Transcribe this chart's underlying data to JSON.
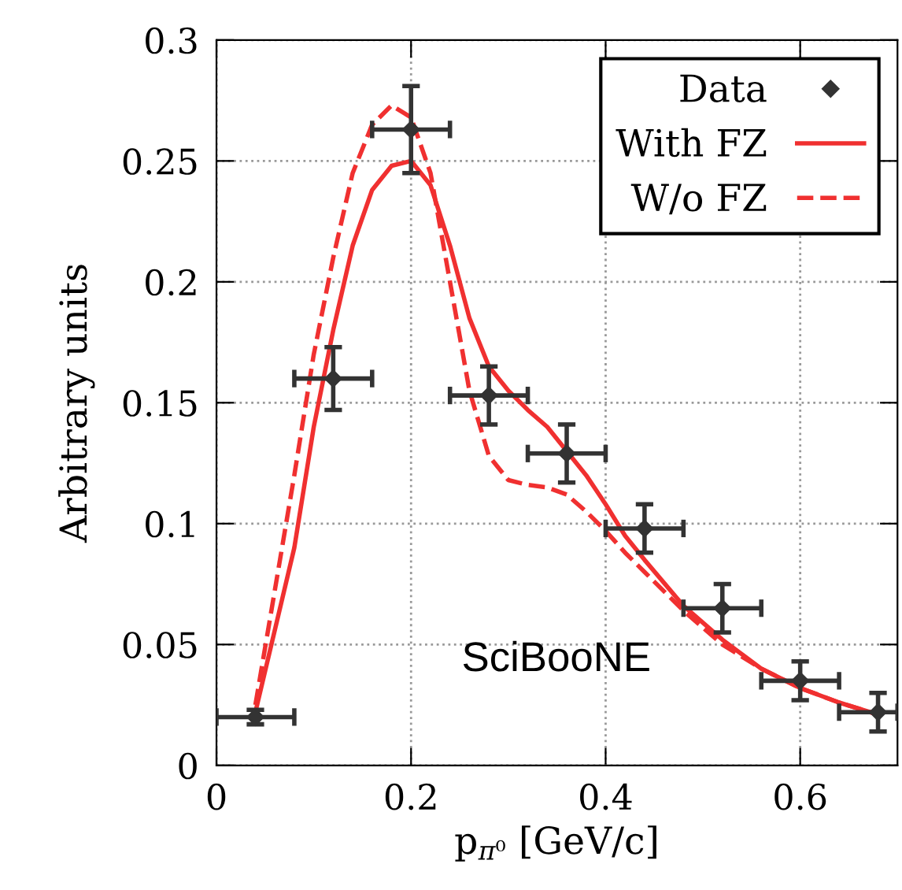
{
  "chart_data": {
    "type": "scatter",
    "xlabel": "p$_{π⁰}$ [GeV/c]",
    "ylabel": "Arbitrary units",
    "xlim": [
      0,
      0.7
    ],
    "ylim": [
      0,
      0.3
    ],
    "xticks": [
      0,
      0.2,
      0.4,
      0.6
    ],
    "yticks": [
      0,
      0.05,
      0.1,
      0.15,
      0.2,
      0.25,
      0.3
    ],
    "grid": true,
    "legend": "top right",
    "annotations": [
      "SciBooNE"
    ],
    "series": [
      {
        "name": "Data",
        "marker": "diamond",
        "color": "#333333",
        "x": [
          0.04,
          0.12,
          0.2,
          0.28,
          0.36,
          0.44,
          0.52,
          0.6,
          0.68
        ],
        "values": [
          0.02,
          0.16,
          0.263,
          0.153,
          0.129,
          0.098,
          0.065,
          0.035,
          0.022
        ],
        "errors": [
          0.003,
          0.013,
          0.018,
          0.012,
          0.012,
          0.01,
          0.01,
          0.008,
          0.008
        ],
        "xerrors": [
          0.04,
          0.04,
          0.04,
          0.04,
          0.04,
          0.04,
          0.04,
          0.04,
          [
            0.64,
            0.7
          ]
        ]
      },
      {
        "name": "With FZ",
        "type": "line",
        "line_style": "solid",
        "color": "#f03030",
        "x": [
          0.04,
          0.08,
          0.1,
          0.12,
          0.14,
          0.16,
          0.18,
          0.2,
          0.22,
          0.24,
          0.26,
          0.28,
          0.3,
          0.32,
          0.34,
          0.36,
          0.38,
          0.4,
          0.42,
          0.44,
          0.48,
          0.52,
          0.56,
          0.6,
          0.64,
          0.68
        ],
        "values": [
          0.022,
          0.09,
          0.14,
          0.18,
          0.215,
          0.238,
          0.248,
          0.25,
          0.24,
          0.215,
          0.185,
          0.165,
          0.155,
          0.147,
          0.14,
          0.13,
          0.12,
          0.108,
          0.095,
          0.085,
          0.066,
          0.052,
          0.04,
          0.032,
          0.026,
          0.021
        ]
      },
      {
        "name": "W/o FZ",
        "type": "line",
        "line_style": "dashed",
        "color": "#f03030",
        "x": [
          0.04,
          0.08,
          0.1,
          0.12,
          0.14,
          0.16,
          0.18,
          0.2,
          0.22,
          0.24,
          0.26,
          0.28,
          0.3,
          0.32,
          0.34,
          0.36,
          0.38,
          0.4,
          0.42,
          0.44,
          0.48,
          0.52,
          0.56,
          0.6,
          0.64,
          0.68
        ],
        "values": [
          0.025,
          0.12,
          0.17,
          0.21,
          0.245,
          0.265,
          0.273,
          0.268,
          0.245,
          0.2,
          0.155,
          0.128,
          0.118,
          0.116,
          0.115,
          0.112,
          0.105,
          0.097,
          0.088,
          0.08,
          0.064,
          0.05,
          0.04,
          0.032,
          0.026,
          0.021
        ]
      }
    ]
  }
}
